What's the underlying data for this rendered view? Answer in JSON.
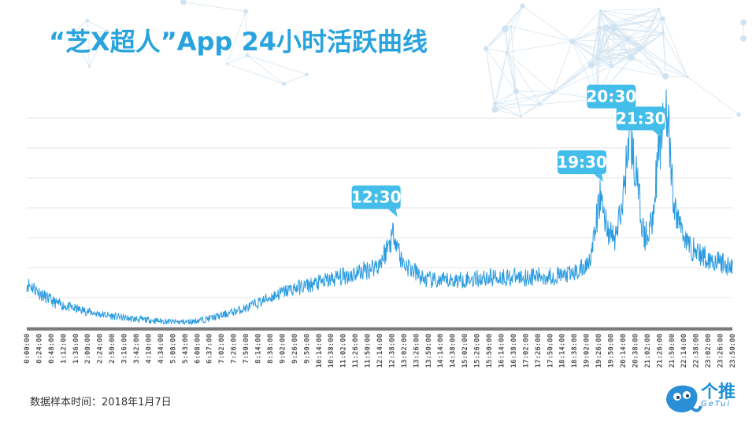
{
  "header": {
    "title": "“芝X超人”App 24小时活跃曲线"
  },
  "footer": {
    "note": "数据样本时间：2018年1月7日"
  },
  "logo": {
    "cn": "个推",
    "en": "GeTui"
  },
  "colors": {
    "title": "#29a3dd",
    "line": "#2a9be0",
    "callout": "#43bdea",
    "axis": "#7a7a7a",
    "grid": "#e6e6e6"
  },
  "chart_data": {
    "type": "line",
    "title": "“芝X超人”App 24小时活跃曲线",
    "xlabel": "",
    "ylabel": "",
    "yaxis_labels_shown": false,
    "grid": true,
    "x_ticks": [
      "0:00:00",
      "0:24:00",
      "0:48:00",
      "1:12:00",
      "1:36:00",
      "2:00:00",
      "2:24:00",
      "2:50:00",
      "3:16:00",
      "3:42:00",
      "4:10:00",
      "4:34:00",
      "5:08:00",
      "5:43:00",
      "6:08:00",
      "6:37:00",
      "7:02:00",
      "7:26:00",
      "7:50:00",
      "8:14:00",
      "8:38:00",
      "9:02:00",
      "9:26:00",
      "9:50:00",
      "10:14:00",
      "10:38:00",
      "11:02:00",
      "11:26:00",
      "11:50:00",
      "12:14:00",
      "12:38:00",
      "13:02:00",
      "13:26:00",
      "13:50:00",
      "14:14:00",
      "14:38:00",
      "15:02:00",
      "15:26:00",
      "15:50:00",
      "16:14:00",
      "16:38:00",
      "17:02:00",
      "17:26:00",
      "17:50:00",
      "18:14:00",
      "18:38:00",
      "19:02:00",
      "19:26:00",
      "19:50:00",
      "20:14:00",
      "20:38:00",
      "21:02:00",
      "21:26:00",
      "21:50:00",
      "22:14:00",
      "22:38:00",
      "23:02:00",
      "23:26:00",
      "23:50:00"
    ],
    "series": [
      {
        "x_hours": [
          0,
          0.25,
          0.5,
          0.75,
          1,
          1.5,
          2,
          2.5,
          3,
          3.5,
          4,
          4.5,
          5,
          5.5,
          6,
          6.5,
          7,
          7.5,
          8,
          8.5,
          9,
          9.5,
          10,
          10.5,
          11,
          11.5,
          12,
          12.25,
          12.5,
          12.75,
          13,
          13.5,
          14,
          15,
          16,
          17,
          18,
          18.5,
          19,
          19.25,
          19.5,
          19.75,
          20,
          20.25,
          20.5,
          20.75,
          21,
          21.25,
          21.5,
          21.75,
          22,
          22.5,
          23,
          23.5,
          24
        ],
        "values": [
          40,
          36,
          30,
          26,
          22,
          18,
          15,
          12,
          10,
          8,
          7,
          6,
          5,
          5,
          7,
          10,
          14,
          18,
          24,
          30,
          35,
          38,
          41,
          45,
          48,
          52,
          58,
          72,
          88,
          60,
          55,
          44,
          42,
          44,
          46,
          46,
          47,
          48,
          55,
          72,
          120,
          90,
          80,
          110,
          180,
          135,
          80,
          95,
          160,
          210,
          110,
          75,
          65,
          60,
          55
        ]
      }
    ],
    "annotations": [
      {
        "label": "12:30",
        "x_hours": 12.5
      },
      {
        "label": "19:30",
        "x_hours": 19.5
      },
      {
        "label": "20:30",
        "x_hours": 20.5
      },
      {
        "label": "21:30",
        "x_hours": 21.5
      }
    ]
  }
}
